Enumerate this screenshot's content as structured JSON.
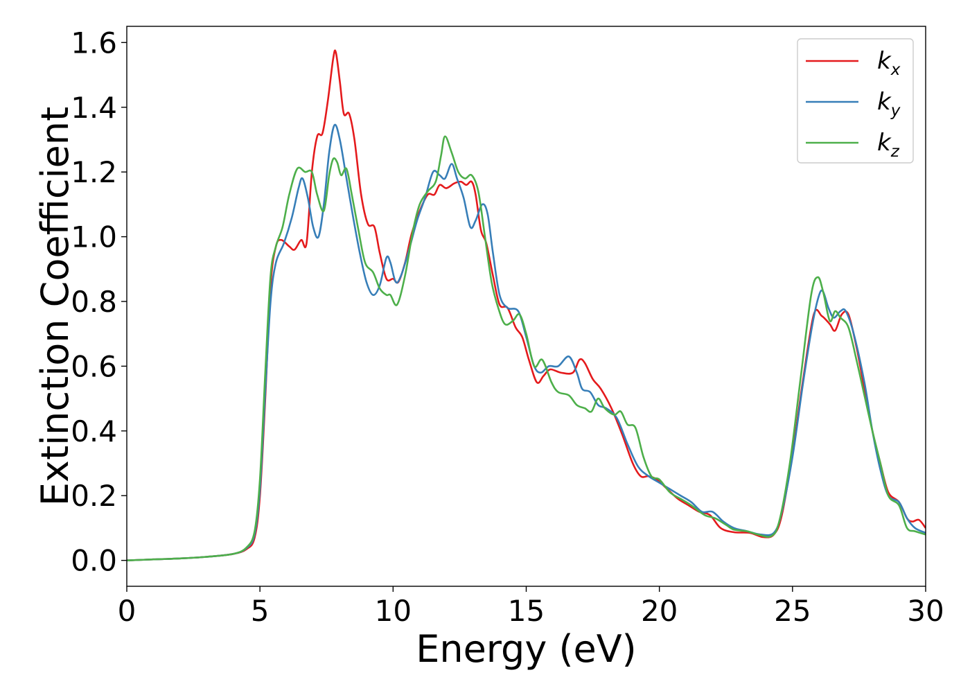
{
  "chart_data": {
    "type": "line",
    "title": "",
    "xlabel": "Energy (eV)",
    "ylabel": "Extinction Coefficient",
    "xlim": [
      0,
      30
    ],
    "ylim": [
      -0.08,
      1.65
    ],
    "x_ticks": [
      0,
      5,
      10,
      15,
      20,
      25,
      30
    ],
    "x_tick_labels": [
      "0",
      "5",
      "10",
      "15",
      "20",
      "25",
      "30"
    ],
    "y_ticks": [
      0.0,
      0.2,
      0.4,
      0.6,
      0.8,
      1.0,
      1.2,
      1.4,
      1.6
    ],
    "y_tick_labels": [
      "0.0",
      "0.2",
      "0.4",
      "0.6",
      "0.8",
      "1.0",
      "1.2",
      "1.4",
      "1.6"
    ],
    "grid": false,
    "legend_position": "top-right",
    "series": [
      {
        "name": "k_x",
        "label_base": "k",
        "label_sub": "x",
        "color": "#e41a1c",
        "points": [
          [
            0,
            0
          ],
          [
            1,
            0.003
          ],
          [
            2,
            0.006
          ],
          [
            3,
            0.011
          ],
          [
            4,
            0.02
          ],
          [
            4.5,
            0.035
          ],
          [
            4.8,
            0.07
          ],
          [
            5.0,
            0.2
          ],
          [
            5.2,
            0.5
          ],
          [
            5.4,
            0.85
          ],
          [
            5.6,
            0.97
          ],
          [
            5.8,
            0.99
          ],
          [
            6.1,
            0.97
          ],
          [
            6.3,
            0.96
          ],
          [
            6.55,
            0.99
          ],
          [
            6.75,
            0.98
          ],
          [
            6.95,
            1.2
          ],
          [
            7.15,
            1.31
          ],
          [
            7.35,
            1.32
          ],
          [
            7.55,
            1.42
          ],
          [
            7.75,
            1.55
          ],
          [
            7.85,
            1.57
          ],
          [
            8.0,
            1.48
          ],
          [
            8.15,
            1.38
          ],
          [
            8.35,
            1.38
          ],
          [
            8.55,
            1.3
          ],
          [
            8.8,
            1.13
          ],
          [
            9.05,
            1.04
          ],
          [
            9.3,
            1.03
          ],
          [
            9.5,
            0.95
          ],
          [
            9.75,
            0.87
          ],
          [
            10.0,
            0.87
          ],
          [
            10.2,
            0.86
          ],
          [
            10.45,
            0.92
          ],
          [
            10.7,
            1.01
          ],
          [
            11.0,
            1.08
          ],
          [
            11.3,
            1.13
          ],
          [
            11.55,
            1.13
          ],
          [
            11.75,
            1.16
          ],
          [
            12.0,
            1.15
          ],
          [
            12.3,
            1.165
          ],
          [
            12.55,
            1.17
          ],
          [
            12.75,
            1.16
          ],
          [
            12.95,
            1.17
          ],
          [
            13.1,
            1.13
          ],
          [
            13.3,
            1.02
          ],
          [
            13.5,
            0.98
          ],
          [
            13.75,
            0.88
          ],
          [
            14.0,
            0.79
          ],
          [
            14.3,
            0.78
          ],
          [
            14.6,
            0.72
          ],
          [
            14.85,
            0.69
          ],
          [
            15.1,
            0.62
          ],
          [
            15.4,
            0.55
          ],
          [
            15.65,
            0.57
          ],
          [
            15.9,
            0.59
          ],
          [
            16.3,
            0.58
          ],
          [
            16.75,
            0.58
          ],
          [
            17.0,
            0.62
          ],
          [
            17.2,
            0.61
          ],
          [
            17.5,
            0.56
          ],
          [
            17.8,
            0.53
          ],
          [
            18.2,
            0.47
          ],
          [
            18.6,
            0.39
          ],
          [
            19.0,
            0.3
          ],
          [
            19.3,
            0.26
          ],
          [
            19.6,
            0.26
          ],
          [
            19.9,
            0.25
          ],
          [
            20.3,
            0.22
          ],
          [
            20.7,
            0.19
          ],
          [
            21.1,
            0.17
          ],
          [
            21.5,
            0.15
          ],
          [
            21.9,
            0.14
          ],
          [
            22.3,
            0.1
          ],
          [
            22.8,
            0.087
          ],
          [
            23.4,
            0.085
          ],
          [
            23.9,
            0.072
          ],
          [
            24.3,
            0.08
          ],
          [
            24.6,
            0.14
          ],
          [
            25.0,
            0.33
          ],
          [
            25.4,
            0.56
          ],
          [
            25.8,
            0.76
          ],
          [
            26.1,
            0.755
          ],
          [
            26.4,
            0.73
          ],
          [
            26.6,
            0.71
          ],
          [
            26.85,
            0.76
          ],
          [
            27.1,
            0.76
          ],
          [
            27.4,
            0.66
          ],
          [
            27.7,
            0.53
          ],
          [
            28.0,
            0.4
          ],
          [
            28.3,
            0.3
          ],
          [
            28.6,
            0.21
          ],
          [
            29.0,
            0.18
          ],
          [
            29.3,
            0.13
          ],
          [
            29.5,
            0.12
          ],
          [
            29.75,
            0.125
          ],
          [
            30.0,
            0.1
          ]
        ]
      },
      {
        "name": "k_y",
        "label_base": "k",
        "label_sub": "y",
        "color": "#377eb8",
        "points": [
          [
            0,
            0
          ],
          [
            1,
            0.003
          ],
          [
            2,
            0.006
          ],
          [
            3,
            0.011
          ],
          [
            4,
            0.02
          ],
          [
            4.5,
            0.038
          ],
          [
            4.8,
            0.08
          ],
          [
            5.0,
            0.22
          ],
          [
            5.2,
            0.52
          ],
          [
            5.4,
            0.8
          ],
          [
            5.6,
            0.92
          ],
          [
            5.9,
            0.98
          ],
          [
            6.2,
            1.06
          ],
          [
            6.45,
            1.15
          ],
          [
            6.6,
            1.18
          ],
          [
            6.8,
            1.12
          ],
          [
            7.0,
            1.03
          ],
          [
            7.2,
            1.0
          ],
          [
            7.4,
            1.1
          ],
          [
            7.6,
            1.26
          ],
          [
            7.8,
            1.345
          ],
          [
            8.0,
            1.3
          ],
          [
            8.25,
            1.18
          ],
          [
            8.5,
            1.06
          ],
          [
            8.75,
            0.95
          ],
          [
            9.0,
            0.86
          ],
          [
            9.25,
            0.82
          ],
          [
            9.5,
            0.85
          ],
          [
            9.75,
            0.935
          ],
          [
            9.9,
            0.92
          ],
          [
            10.1,
            0.86
          ],
          [
            10.3,
            0.88
          ],
          [
            10.6,
            0.96
          ],
          [
            10.9,
            1.05
          ],
          [
            11.2,
            1.12
          ],
          [
            11.5,
            1.2
          ],
          [
            11.75,
            1.19
          ],
          [
            11.95,
            1.18
          ],
          [
            12.2,
            1.225
          ],
          [
            12.4,
            1.18
          ],
          [
            12.65,
            1.12
          ],
          [
            12.9,
            1.03
          ],
          [
            13.1,
            1.05
          ],
          [
            13.35,
            1.1
          ],
          [
            13.55,
            1.07
          ],
          [
            13.75,
            0.95
          ],
          [
            14.0,
            0.82
          ],
          [
            14.3,
            0.78
          ],
          [
            14.7,
            0.77
          ],
          [
            15.0,
            0.69
          ],
          [
            15.3,
            0.6
          ],
          [
            15.55,
            0.58
          ],
          [
            15.85,
            0.6
          ],
          [
            16.2,
            0.6
          ],
          [
            16.6,
            0.63
          ],
          [
            16.9,
            0.58
          ],
          [
            17.1,
            0.53
          ],
          [
            17.4,
            0.52
          ],
          [
            17.7,
            0.48
          ],
          [
            18.0,
            0.47
          ],
          [
            18.4,
            0.44
          ],
          [
            18.8,
            0.36
          ],
          [
            19.2,
            0.29
          ],
          [
            19.6,
            0.26
          ],
          [
            20.0,
            0.24
          ],
          [
            20.4,
            0.22
          ],
          [
            20.8,
            0.2
          ],
          [
            21.2,
            0.18
          ],
          [
            21.6,
            0.15
          ],
          [
            22.0,
            0.15
          ],
          [
            22.4,
            0.12
          ],
          [
            22.8,
            0.1
          ],
          [
            23.3,
            0.09
          ],
          [
            23.8,
            0.08
          ],
          [
            24.3,
            0.085
          ],
          [
            24.6,
            0.15
          ],
          [
            25.0,
            0.32
          ],
          [
            25.4,
            0.55
          ],
          [
            25.75,
            0.73
          ],
          [
            26.0,
            0.82
          ],
          [
            26.15,
            0.83
          ],
          [
            26.35,
            0.78
          ],
          [
            26.55,
            0.75
          ],
          [
            26.8,
            0.77
          ],
          [
            27.0,
            0.77
          ],
          [
            27.3,
            0.7
          ],
          [
            27.7,
            0.55
          ],
          [
            28.0,
            0.4
          ],
          [
            28.3,
            0.28
          ],
          [
            28.6,
            0.2
          ],
          [
            29.0,
            0.18
          ],
          [
            29.3,
            0.13
          ],
          [
            29.6,
            0.1
          ],
          [
            30.0,
            0.085
          ]
        ]
      },
      {
        "name": "k_z",
        "label_base": "k",
        "label_sub": "z",
        "color": "#4daf4a",
        "points": [
          [
            0,
            0
          ],
          [
            1,
            0.003
          ],
          [
            2,
            0.006
          ],
          [
            3,
            0.011
          ],
          [
            4,
            0.02
          ],
          [
            4.5,
            0.04
          ],
          [
            4.8,
            0.09
          ],
          [
            5.0,
            0.25
          ],
          [
            5.2,
            0.58
          ],
          [
            5.4,
            0.88
          ],
          [
            5.6,
            0.97
          ],
          [
            5.85,
            1.03
          ],
          [
            6.1,
            1.13
          ],
          [
            6.4,
            1.21
          ],
          [
            6.7,
            1.2
          ],
          [
            6.95,
            1.2
          ],
          [
            7.15,
            1.13
          ],
          [
            7.4,
            1.08
          ],
          [
            7.6,
            1.19
          ],
          [
            7.75,
            1.24
          ],
          [
            7.9,
            1.23
          ],
          [
            8.05,
            1.19
          ],
          [
            8.25,
            1.21
          ],
          [
            8.45,
            1.13
          ],
          [
            8.7,
            1.02
          ],
          [
            8.95,
            0.92
          ],
          [
            9.25,
            0.89
          ],
          [
            9.5,
            0.84
          ],
          [
            9.75,
            0.82
          ],
          [
            9.9,
            0.82
          ],
          [
            10.15,
            0.79
          ],
          [
            10.45,
            0.88
          ],
          [
            10.75,
            1.02
          ],
          [
            11.0,
            1.1
          ],
          [
            11.3,
            1.14
          ],
          [
            11.6,
            1.17
          ],
          [
            11.8,
            1.25
          ],
          [
            11.95,
            1.31
          ],
          [
            12.2,
            1.26
          ],
          [
            12.45,
            1.2
          ],
          [
            12.7,
            1.18
          ],
          [
            12.95,
            1.19
          ],
          [
            13.2,
            1.14
          ],
          [
            13.45,
            1.0
          ],
          [
            13.7,
            0.86
          ],
          [
            13.95,
            0.78
          ],
          [
            14.2,
            0.73
          ],
          [
            14.5,
            0.74
          ],
          [
            14.75,
            0.76
          ],
          [
            15.0,
            0.7
          ],
          [
            15.3,
            0.6
          ],
          [
            15.6,
            0.62
          ],
          [
            15.95,
            0.55
          ],
          [
            16.2,
            0.52
          ],
          [
            16.6,
            0.51
          ],
          [
            16.9,
            0.48
          ],
          [
            17.2,
            0.47
          ],
          [
            17.45,
            0.46
          ],
          [
            17.7,
            0.5
          ],
          [
            17.95,
            0.47
          ],
          [
            18.3,
            0.45
          ],
          [
            18.55,
            0.46
          ],
          [
            18.8,
            0.42
          ],
          [
            19.1,
            0.41
          ],
          [
            19.4,
            0.32
          ],
          [
            19.7,
            0.26
          ],
          [
            20.0,
            0.25
          ],
          [
            20.4,
            0.21
          ],
          [
            20.8,
            0.19
          ],
          [
            21.2,
            0.17
          ],
          [
            21.7,
            0.14
          ],
          [
            22.1,
            0.13
          ],
          [
            22.5,
            0.11
          ],
          [
            22.8,
            0.095
          ],
          [
            23.3,
            0.09
          ],
          [
            23.7,
            0.08
          ],
          [
            24.2,
            0.075
          ],
          [
            24.5,
            0.12
          ],
          [
            24.9,
            0.3
          ],
          [
            25.3,
            0.56
          ],
          [
            25.7,
            0.82
          ],
          [
            25.95,
            0.875
          ],
          [
            26.15,
            0.83
          ],
          [
            26.4,
            0.74
          ],
          [
            26.6,
            0.77
          ],
          [
            26.8,
            0.75
          ],
          [
            27.1,
            0.72
          ],
          [
            27.4,
            0.62
          ],
          [
            27.7,
            0.51
          ],
          [
            28.0,
            0.4
          ],
          [
            28.3,
            0.3
          ],
          [
            28.6,
            0.2
          ],
          [
            29.0,
            0.17
          ],
          [
            29.3,
            0.1
          ],
          [
            29.6,
            0.09
          ],
          [
            30.0,
            0.08
          ]
        ]
      }
    ]
  }
}
